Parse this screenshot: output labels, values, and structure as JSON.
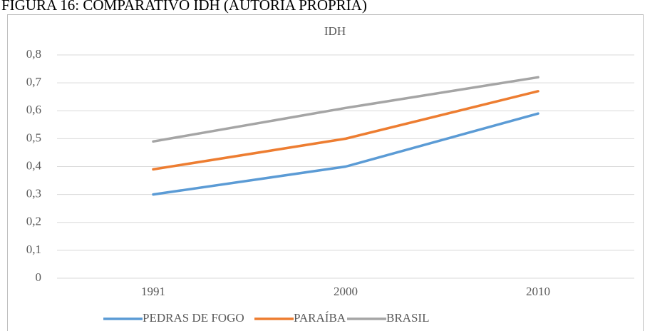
{
  "caption": "FIGURA 16: COMPARATIVO IDH (AUTORIA PRÓPRIA)",
  "chart_data": {
    "type": "line",
    "title": "IDH",
    "categories": [
      "1991",
      "2000",
      "2010"
    ],
    "series": [
      {
        "name": "PEDRAS DE FOGO",
        "color": "#5b9bd5",
        "values": [
          0.3,
          0.4,
          0.59
        ]
      },
      {
        "name": "PARAÍBA",
        "color": "#ed7d31",
        "values": [
          0.39,
          0.5,
          0.67
        ]
      },
      {
        "name": "BRASIL",
        "color": "#a5a5a5",
        "values": [
          0.49,
          0.61,
          0.72
        ]
      }
    ],
    "ylim": [
      0,
      0.8
    ],
    "yticks": [
      0,
      {
        "value": 0.1,
        "label": "0,1"
      },
      {
        "value": 0.2,
        "label": "0,2"
      },
      {
        "value": 0.3,
        "label": "0,3"
      },
      {
        "value": 0.4,
        "label": "0,4"
      },
      {
        "value": 0.5,
        "label": "0,5"
      },
      {
        "value": 0.6,
        "label": "0,6"
      },
      {
        "value": 0.7,
        "label": "0,7"
      },
      {
        "value": 0.8,
        "label": "0,8"
      }
    ],
    "grid": true,
    "legend": "bottom"
  }
}
